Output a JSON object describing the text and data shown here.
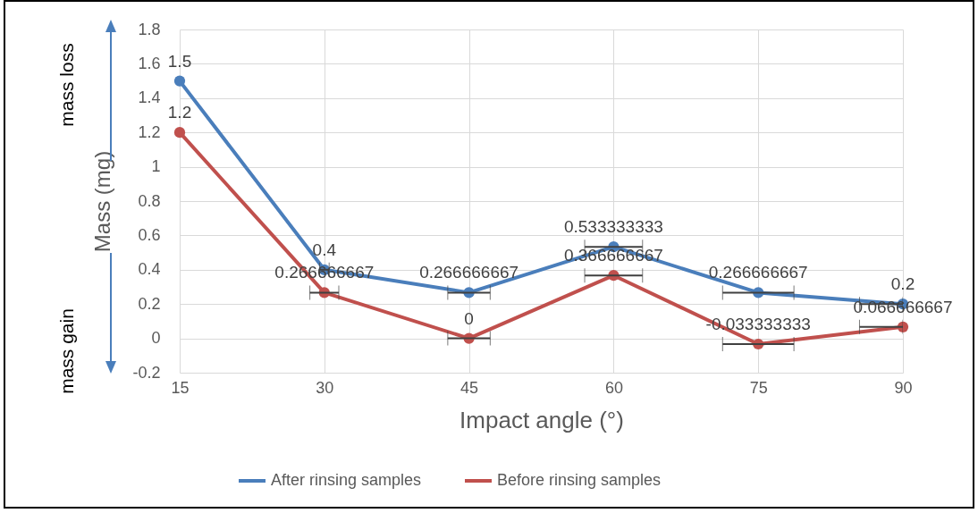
{
  "chart_data": {
    "type": "line",
    "xlabel": "Impact angle (°)",
    "ylabel": "Mass (mg)",
    "x": [
      15,
      30,
      45,
      60,
      75,
      90
    ],
    "series": [
      {
        "name": "After rinsing samples",
        "color": "#4a7ebb",
        "values": [
          1.5,
          0.4,
          0.266666667,
          0.533333333,
          0.266666667,
          0.2
        ],
        "xerrors": [
          null,
          0.5,
          2.2,
          3,
          3.7,
          [
            85.5,
            90
          ]
        ]
      },
      {
        "name": "Before rinsing samples",
        "color": "#c0504d",
        "values": [
          1.2,
          0.266666667,
          0,
          0.366666667,
          -0.033333333,
          0.066666667
        ],
        "xerrors": [
          null,
          1.5,
          2.2,
          3,
          3.7,
          [
            85.5,
            90
          ]
        ]
      }
    ],
    "xlim": [
      15,
      90
    ],
    "xticks": [
      15,
      30,
      45,
      60,
      75,
      90
    ],
    "ylim": [
      -0.2,
      1.8
    ],
    "yticks": [
      -0.2,
      0,
      0.2,
      0.4,
      0.6,
      0.8,
      1,
      1.2,
      1.4,
      1.6,
      1.8
    ],
    "grid": true,
    "legend": "bottom",
    "marker": "circle",
    "line_style": "solid",
    "data_labels": true,
    "annotations": [
      "mass loss",
      "mass gain"
    ]
  }
}
